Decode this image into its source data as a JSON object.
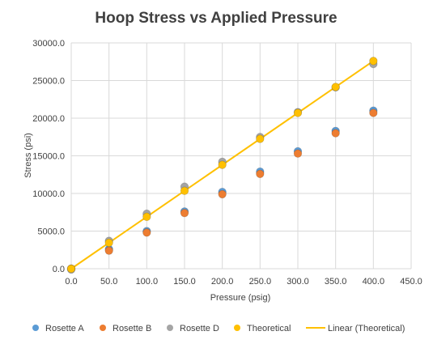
{
  "chart_data": {
    "type": "scatter",
    "title": "Hoop Stress vs Applied Pressure",
    "xlabel": "Pressure (psig)",
    "ylabel": "Stress (psi)",
    "xlim": [
      0,
      450
    ],
    "ylim": [
      0,
      30000
    ],
    "x_ticks": [
      "0.0",
      "50.0",
      "100.0",
      "150.0",
      "200.0",
      "250.0",
      "300.0",
      "350.0",
      "400.0",
      "450.0"
    ],
    "y_ticks": [
      "0.0",
      "5000.0",
      "10000.0",
      "15000.0",
      "20000.0",
      "25000.0",
      "30000.0"
    ],
    "grid": true,
    "legend_position": "bottom",
    "x": [
      0,
      50,
      100,
      150,
      200,
      250,
      300,
      350,
      400
    ],
    "series": [
      {
        "name": "Rosette A",
        "color": "#5b9bd5",
        "marker": "circle",
        "values": [
          0,
          2600,
          5000,
          7600,
          10200,
          12900,
          15600,
          18300,
          21000
        ]
      },
      {
        "name": "Rosette B",
        "color": "#ed7d31",
        "marker": "circle",
        "values": [
          0,
          2400,
          4800,
          7400,
          9900,
          12600,
          15300,
          18000,
          20700
        ]
      },
      {
        "name": "Rosette D",
        "color": "#a5a5a5",
        "marker": "circle",
        "values": [
          -100,
          3700,
          7300,
          10900,
          14200,
          17500,
          20800,
          24100,
          27200
        ]
      },
      {
        "name": "Theoretical",
        "color": "#ffc000",
        "marker": "circle",
        "values": [
          0,
          3450,
          6900,
          10350,
          13800,
          17250,
          20700,
          24150,
          27600
        ]
      },
      {
        "name": "Linear (Theoretical)",
        "color": "#ffc000",
        "marker": "line",
        "line_from": [
          0,
          0
        ],
        "line_to": [
          400,
          27600
        ]
      }
    ]
  }
}
